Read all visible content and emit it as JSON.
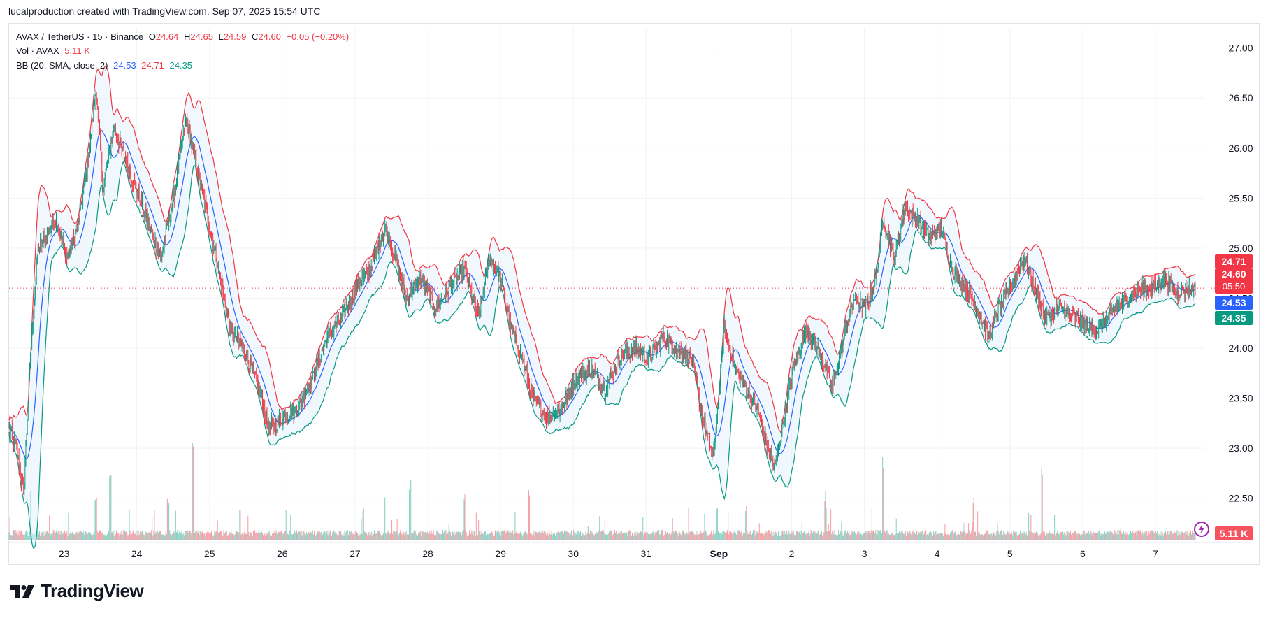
{
  "header": {
    "attribution": "lucalproduction created with TradingView.com, Sep 07, 2025 15:54 UTC"
  },
  "legend": {
    "symbol": "AVAX / TetherUS · 15 · Binance",
    "o_label": "O",
    "o_value": "24.64",
    "h_label": "H",
    "h_value": "24.65",
    "l_label": "L",
    "l_value": "24.59",
    "c_label": "C",
    "c_value": "24.60",
    "change": "−0.05 (−0.20%)",
    "vol_label": "Vol · AVAX",
    "vol_value": "5.11 K",
    "bb_label": "BB (20, SMA, close, 2)",
    "bb_basis": "24.53",
    "bb_upper": "24.71",
    "bb_lower": "24.35"
  },
  "price_tags": {
    "upper": "24.71",
    "last": "24.60",
    "countdown": "05:50",
    "basis": "24.53",
    "lower": "24.35",
    "volume": "5.11 K"
  },
  "brand": {
    "name": "TradingView"
  },
  "colors": {
    "up": "#089981",
    "down": "#f23645",
    "basis": "#2962ff",
    "upper_band": "#f23645",
    "lower_band": "#089981",
    "band_fill": "#e3f2fd"
  },
  "chart_data": {
    "type": "candlestick",
    "ylim": [
      22.1,
      27.2
    ],
    "y_ticks": [
      "27.00",
      "26.50",
      "26.00",
      "25.50",
      "25.00",
      "24.50",
      "24.00",
      "23.50",
      "23.00",
      "22.50"
    ],
    "y_tick_values": [
      27.0,
      26.5,
      26.0,
      25.5,
      25.0,
      24.5,
      24.0,
      23.5,
      23.0,
      22.5
    ],
    "x_ticks": [
      "23",
      "24",
      "25",
      "26",
      "27",
      "28",
      "29",
      "30",
      "31",
      "Sep",
      "2",
      "3",
      "4",
      "5",
      "6",
      "7"
    ],
    "x_tick_days": [
      1,
      2,
      3,
      4,
      5,
      6,
      7,
      8,
      9,
      10,
      11,
      12,
      13,
      14,
      15,
      16
    ],
    "x_range_days": [
      0.25,
      16.67
    ],
    "last_price": 24.6,
    "close_anchors": [
      [
        0.25,
        23.2
      ],
      [
        0.35,
        23.0
      ],
      [
        0.45,
        22.55
      ],
      [
        0.55,
        24.0
      ],
      [
        0.65,
        25.0
      ],
      [
        0.75,
        25.1
      ],
      [
        0.9,
        25.3
      ],
      [
        1.05,
        24.9
      ],
      [
        1.2,
        25.2
      ],
      [
        1.35,
        25.9
      ],
      [
        1.45,
        26.6
      ],
      [
        1.55,
        25.6
      ],
      [
        1.7,
        26.2
      ],
      [
        1.85,
        25.9
      ],
      [
        2.0,
        25.6
      ],
      [
        2.2,
        25.2
      ],
      [
        2.35,
        24.9
      ],
      [
        2.55,
        25.6
      ],
      [
        2.7,
        26.3
      ],
      [
        2.85,
        25.8
      ],
      [
        3.0,
        25.3
      ],
      [
        3.15,
        24.8
      ],
      [
        3.3,
        24.2
      ],
      [
        3.5,
        24.0
      ],
      [
        3.7,
        23.6
      ],
      [
        3.85,
        23.2
      ],
      [
        4.05,
        23.3
      ],
      [
        4.25,
        23.4
      ],
      [
        4.45,
        23.7
      ],
      [
        4.65,
        24.1
      ],
      [
        4.85,
        24.3
      ],
      [
        5.05,
        24.6
      ],
      [
        5.25,
        24.8
      ],
      [
        5.45,
        25.2
      ],
      [
        5.6,
        24.9
      ],
      [
        5.75,
        24.5
      ],
      [
        5.95,
        24.7
      ],
      [
        6.15,
        24.4
      ],
      [
        6.35,
        24.6
      ],
      [
        6.55,
        24.8
      ],
      [
        6.75,
        24.3
      ],
      [
        6.9,
        24.9
      ],
      [
        7.05,
        24.7
      ],
      [
        7.2,
        24.2
      ],
      [
        7.35,
        23.9
      ],
      [
        7.5,
        23.5
      ],
      [
        7.7,
        23.3
      ],
      [
        7.9,
        23.4
      ],
      [
        8.1,
        23.7
      ],
      [
        8.3,
        23.8
      ],
      [
        8.5,
        23.6
      ],
      [
        8.7,
        23.9
      ],
      [
        8.9,
        24.0
      ],
      [
        9.1,
        23.9
      ],
      [
        9.3,
        24.1
      ],
      [
        9.5,
        24.0
      ],
      [
        9.7,
        23.9
      ],
      [
        9.85,
        23.3
      ],
      [
        10.0,
        22.9
      ],
      [
        10.15,
        24.2
      ],
      [
        10.3,
        23.8
      ],
      [
        10.45,
        23.6
      ],
      [
        10.6,
        23.4
      ],
      [
        10.75,
        23.0
      ],
      [
        10.85,
        22.8
      ],
      [
        10.95,
        23.2
      ],
      [
        11.1,
        23.8
      ],
      [
        11.3,
        24.2
      ],
      [
        11.5,
        23.9
      ],
      [
        11.65,
        23.6
      ],
      [
        11.8,
        24.1
      ],
      [
        11.95,
        24.5
      ],
      [
        12.1,
        24.4
      ],
      [
        12.25,
        24.7
      ],
      [
        12.35,
        25.3
      ],
      [
        12.5,
        24.9
      ],
      [
        12.65,
        25.4
      ],
      [
        12.8,
        25.3
      ],
      [
        13.0,
        25.1
      ],
      [
        13.15,
        25.2
      ],
      [
        13.3,
        24.8
      ],
      [
        13.5,
        24.6
      ],
      [
        13.65,
        24.4
      ],
      [
        13.8,
        24.1
      ],
      [
        13.95,
        24.4
      ],
      [
        14.1,
        24.6
      ],
      [
        14.3,
        24.9
      ],
      [
        14.45,
        24.6
      ],
      [
        14.6,
        24.3
      ],
      [
        14.8,
        24.4
      ],
      [
        15.0,
        24.3
      ],
      [
        15.2,
        24.2
      ],
      [
        15.35,
        24.2
      ],
      [
        15.55,
        24.4
      ],
      [
        15.75,
        24.5
      ],
      [
        15.95,
        24.6
      ],
      [
        16.1,
        24.6
      ],
      [
        16.25,
        24.7
      ],
      [
        16.4,
        24.55
      ],
      [
        16.55,
        24.6
      ],
      [
        16.67,
        24.6
      ]
    ],
    "volume_spikes_days": [
      [
        0.55,
        0.55
      ],
      [
        1.45,
        0.4
      ],
      [
        1.65,
        0.65
      ],
      [
        2.45,
        0.4
      ],
      [
        2.8,
        1.0
      ],
      [
        3.45,
        0.3
      ],
      [
        5.15,
        0.3
      ],
      [
        5.45,
        0.45
      ],
      [
        5.8,
        0.59
      ],
      [
        6.55,
        0.45
      ],
      [
        7.45,
        0.5
      ],
      [
        10.05,
        0.37
      ],
      [
        10.45,
        0.32
      ],
      [
        11.55,
        0.38
      ],
      [
        12.35,
        0.8
      ],
      [
        13.6,
        0.4
      ],
      [
        14.55,
        0.7
      ]
    ]
  }
}
